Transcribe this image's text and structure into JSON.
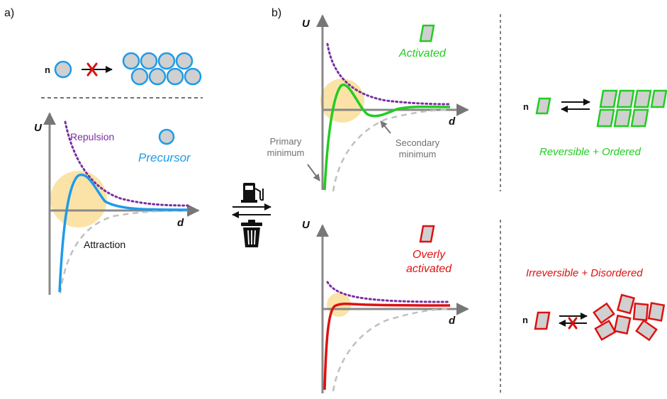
{
  "panels": {
    "a": {
      "label": "a)",
      "particle_count_label": "n",
      "axis_y": "U",
      "axis_x": "d",
      "repulsion_label": "Repulsion",
      "species_label": "Precursor",
      "attraction_label": "Attraction"
    },
    "b": {
      "label": "b)",
      "activated": {
        "axis_y": "U",
        "axis_x": "d",
        "species_label": "Activated",
        "primary_minimum_label": [
          "Primary",
          "minimum"
        ],
        "secondary_minimum_label": [
          "Secondary",
          "minimum"
        ]
      },
      "overly_activated": {
        "axis_y": "U",
        "axis_x": "d",
        "species_label": [
          "Overly",
          "activated"
        ]
      }
    },
    "right": {
      "top": {
        "particle_count_label": "n",
        "outcome": "Reversible + Ordered"
      },
      "bottom": {
        "particle_count_label": "n",
        "outcome": "Irreversible + Disordered"
      }
    }
  },
  "icons": [
    "fuel-pump-icon",
    "trash-can-icon",
    "red-x-icon"
  ],
  "colors": {
    "precursor": "#1e9be8",
    "activated": "#22cc22",
    "overly_activated": "#dd1111",
    "repulsion": "#7a2fa0",
    "attraction": "#c0c0c0",
    "highlight": "#fbe3a8",
    "particle_fill": "#d0d0d0"
  }
}
